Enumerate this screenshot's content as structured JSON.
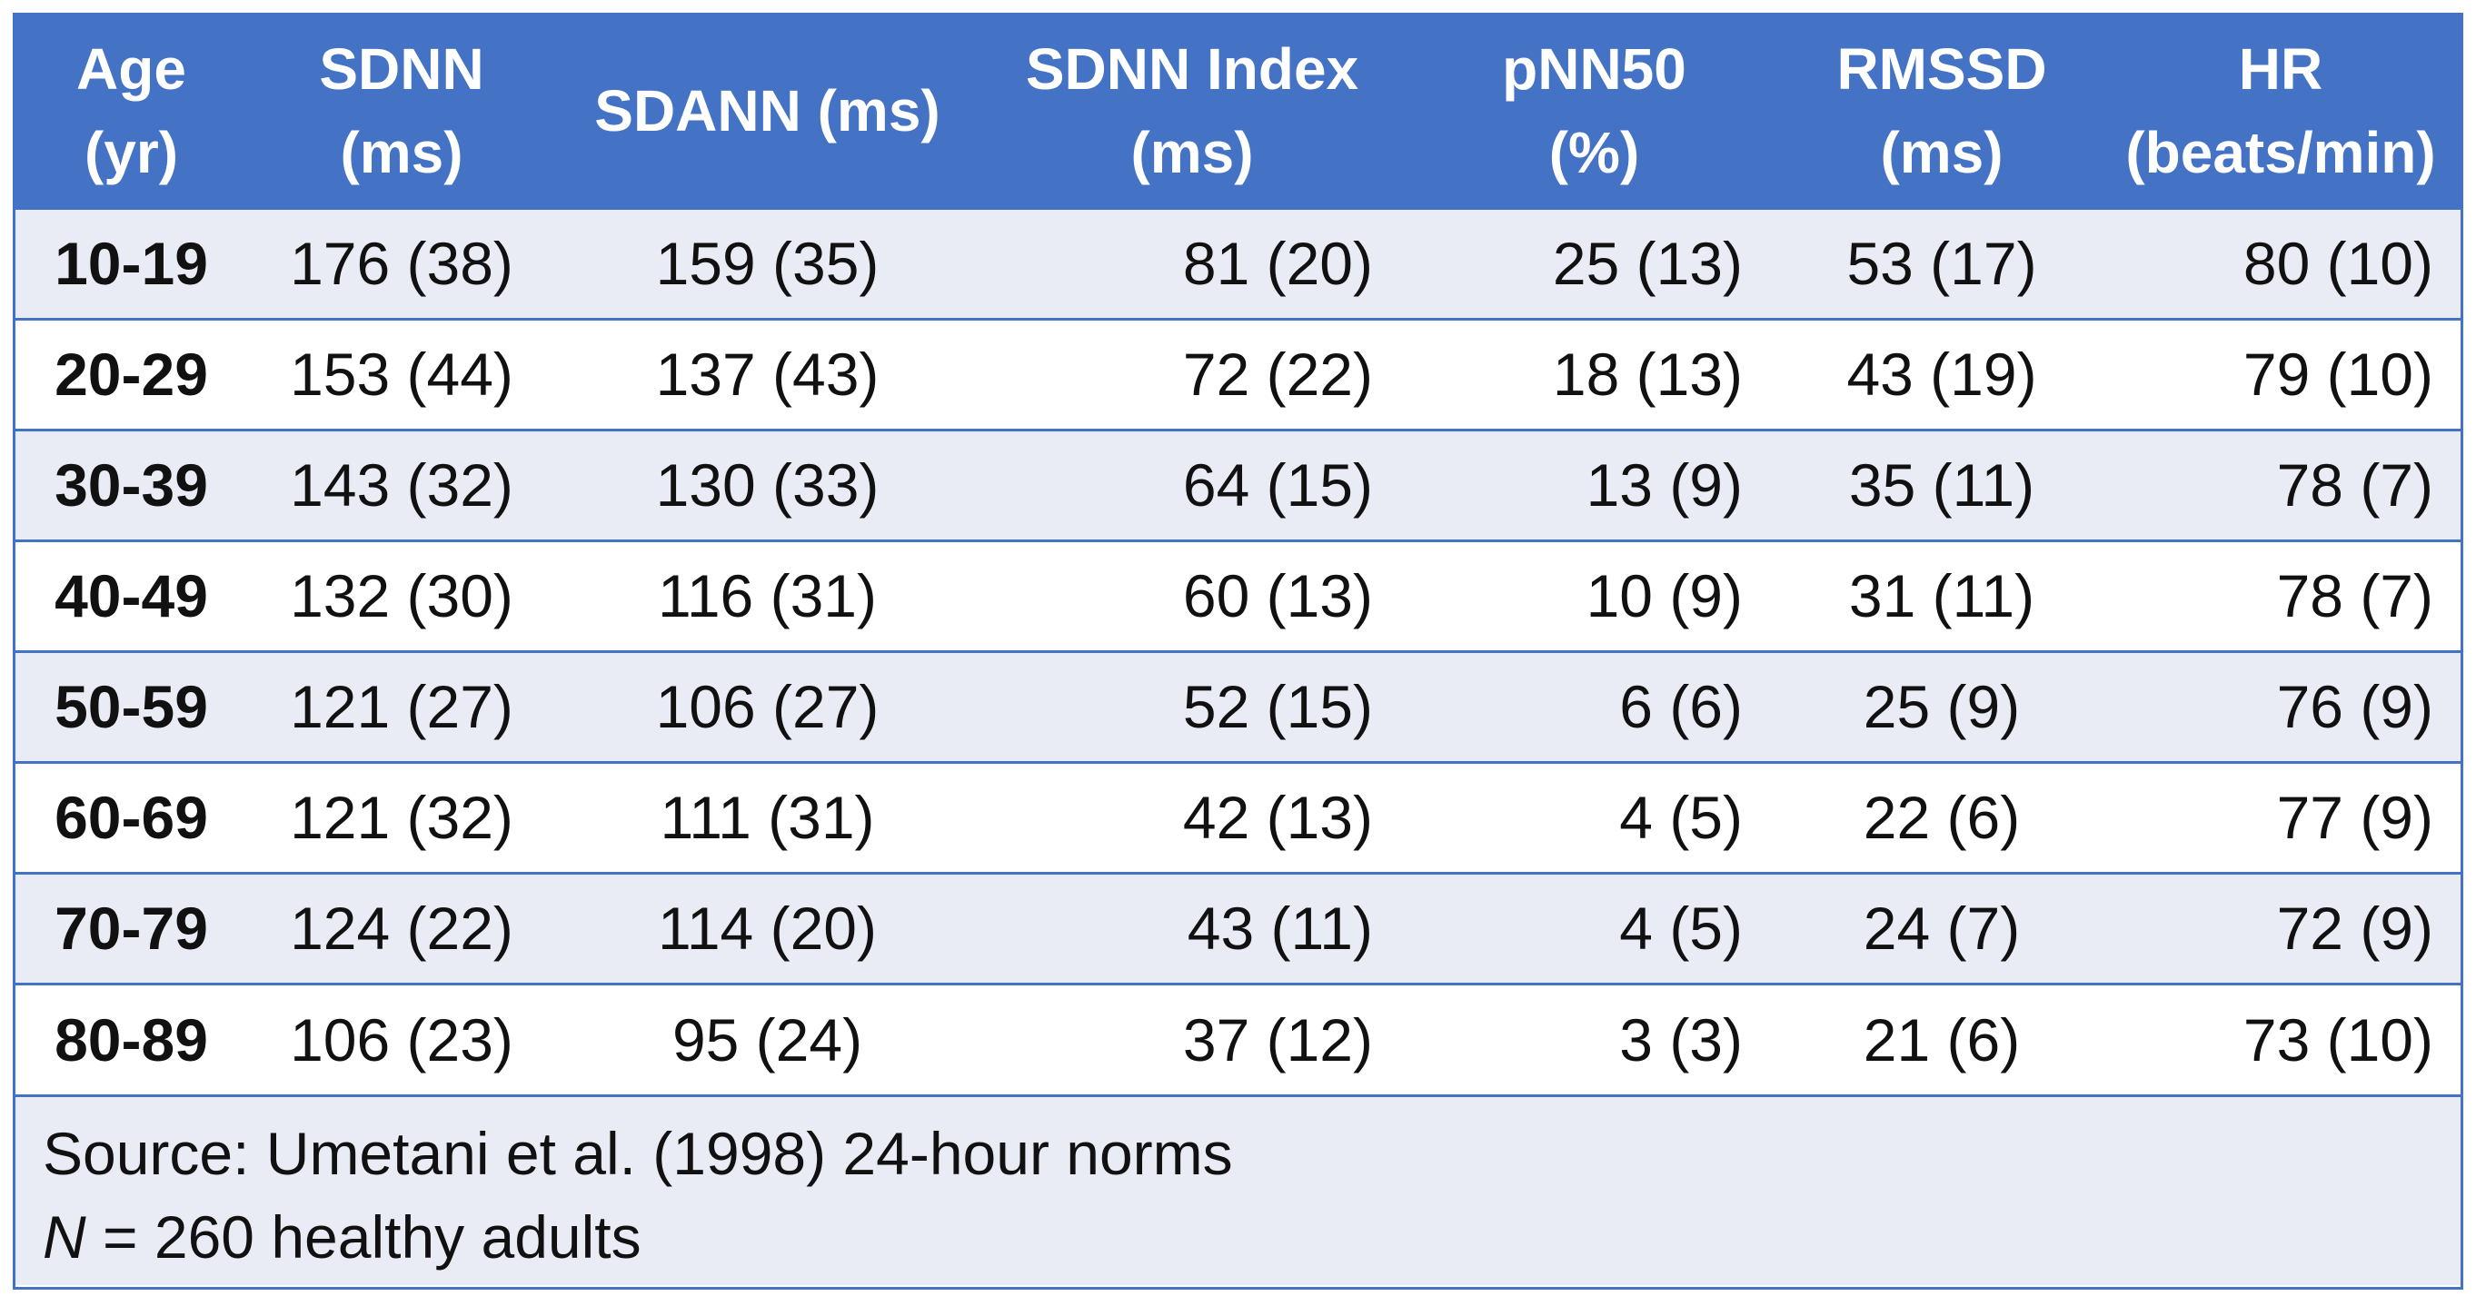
{
  "chart_data": {
    "type": "table",
    "columns": [
      {
        "key": "age",
        "lines": [
          "Age",
          "(yr)"
        ]
      },
      {
        "key": "sdnn",
        "lines": [
          "SDNN",
          "(ms)"
        ]
      },
      {
        "key": "sdann",
        "lines": [
          "SDANN (ms)"
        ]
      },
      {
        "key": "sdnn_index",
        "lines": [
          "SDNN Index",
          "(ms)"
        ]
      },
      {
        "key": "pnn50",
        "lines": [
          "pNN50",
          "(%)"
        ]
      },
      {
        "key": "rmssd",
        "lines": [
          "RMSSD",
          "(ms)"
        ]
      },
      {
        "key": "hr",
        "lines": [
          "HR",
          "(beats/min)"
        ]
      }
    ],
    "rows": [
      [
        "10-19",
        "176 (38)",
        "159 (35)",
        "81 (20)",
        "25 (13)",
        "53 (17)",
        "80 (10)"
      ],
      [
        "20-29",
        "153 (44)",
        "137 (43)",
        "72 (22)",
        "18 (13)",
        "43 (19)",
        "79 (10)"
      ],
      [
        "30-39",
        "143 (32)",
        "130 (33)",
        "64 (15)",
        "13 (9)",
        "35 (11)",
        "78 (7)"
      ],
      [
        "40-49",
        "132 (30)",
        "116 (31)",
        "60 (13)",
        "10 (9)",
        "31 (11)",
        "78 (7)"
      ],
      [
        "50-59",
        "121 (27)",
        "106 (27)",
        "52 (15)",
        "6 (6)",
        "25 (9)",
        "76 (9)"
      ],
      [
        "60-69",
        "121 (32)",
        "111 (31)",
        "42 (13)",
        "4 (5)",
        "22 (6)",
        "77 (9)"
      ],
      [
        "70-79",
        "124 (22)",
        "114 (20)",
        "43 (11)",
        "4 (5)",
        "24 (7)",
        "72 (9)"
      ],
      [
        "80-89",
        "106 (23)",
        "95 (24)",
        "37 (12)",
        "3 (3)",
        "21 (6)",
        "73 (10)"
      ]
    ],
    "footnote": {
      "source": "Source: Umetani et al. (1998) 24-hour norms",
      "n_symbol": "N",
      "n_text": " = 260 healthy adults"
    },
    "colors": {
      "header_bg": "#4472c4",
      "header_text": "#ffffff",
      "band_bg": "#e9ebf5",
      "row_bg": "#ffffff",
      "rule": "#4472c4"
    }
  }
}
